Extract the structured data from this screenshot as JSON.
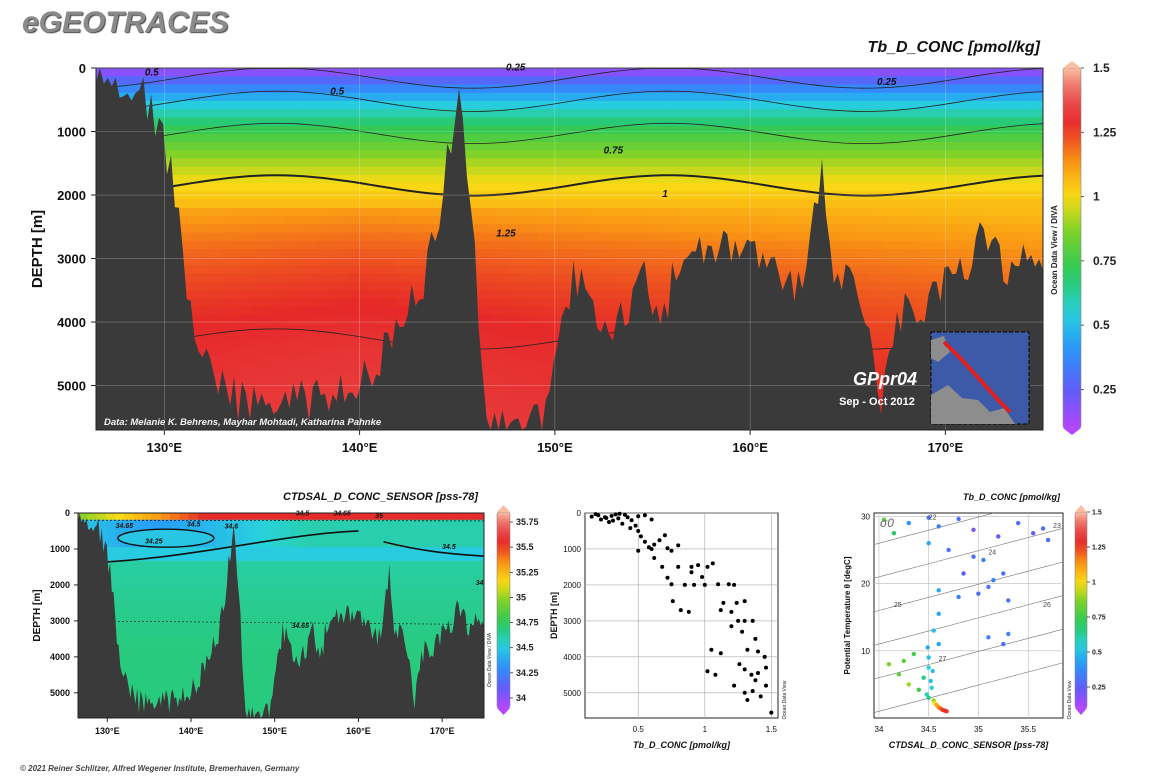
{
  "brand": "eGEOTRACES",
  "copyright": "© 2021 Reiner Schlitzer, Alfred Wegener Institute, Bremerhaven, Germany",
  "chart_data": [
    {
      "type": "heatmap",
      "title": "Tb_D_CONC [pmol/kg]",
      "ylabel": "DEPTH [m]",
      "xlim": [
        126.5,
        175
      ],
      "ylim": [
        5700,
        0
      ],
      "x_ticks": [
        "130°E",
        "140°E",
        "150°E",
        "160°E",
        "170°E"
      ],
      "x_tick_values": [
        130,
        140,
        150,
        160,
        170
      ],
      "y_ticks": [
        "0",
        "1000",
        "2000",
        "3000",
        "4000",
        "5000"
      ],
      "y_tick_values": [
        0,
        1000,
        2000,
        3000,
        4000,
        5000
      ],
      "colorbar": {
        "ticks": [
          "1.5",
          "1.25",
          "1",
          "0.75",
          "0.5",
          "0.25"
        ],
        "tick_values": [
          1.5,
          1.25,
          1,
          0.75,
          0.5,
          0.25
        ],
        "range": [
          0.1,
          1.5
        ]
      },
      "contour_labels": [
        "0.5",
        "0.25",
        "0.5",
        "0.25",
        "0.75",
        "1",
        "1.25"
      ],
      "credit": "Data: Melanie K. Behrens, Mayhar Mohtadi, Katharina Pahnke",
      "watermark": "Ocean Data View / DIVA",
      "cruise": "GPpr04",
      "cruise_dates": "Sep - Oct 2012"
    },
    {
      "type": "heatmap",
      "title": "CTDSAL_D_CONC_SENSOR [pss-78]",
      "ylabel": "DEPTH [m]",
      "xlim": [
        126.5,
        175
      ],
      "ylim": [
        5700,
        0
      ],
      "x_ticks": [
        "130°E",
        "140°E",
        "150°E",
        "160°E",
        "170°E"
      ],
      "x_tick_values": [
        130,
        140,
        150,
        160,
        170
      ],
      "y_ticks": [
        "0",
        "1000",
        "2000",
        "3000",
        "4000",
        "5000"
      ],
      "y_tick_values": [
        0,
        1000,
        2000,
        3000,
        4000,
        5000
      ],
      "colorbar": {
        "ticks": [
          "35.75",
          "35.5",
          "35.25",
          "35",
          "34.75",
          "34.5",
          "34.25",
          "34"
        ],
        "tick_values": [
          35.75,
          35.5,
          35.25,
          35,
          34.75,
          34.5,
          34.25,
          34
        ],
        "range": [
          33.9,
          35.85
        ]
      },
      "contour_labels": [
        "34.65",
        "34.5",
        "34.6",
        "34.5",
        "34.65",
        "35",
        "34.25",
        "34.5",
        "34",
        "34.65"
      ],
      "watermark": "Ocean Data View / DIVA"
    },
    {
      "type": "scatter",
      "xlabel": "Tb_D_CONC [pmol/kg]",
      "ylabel": "DEPTH [m]",
      "xlim": [
        0.1,
        1.55
      ],
      "ylim": [
        5700,
        0
      ],
      "x_ticks": [
        "0.5",
        "1",
        "1.5"
      ],
      "x_tick_values": [
        0.5,
        1,
        1.5
      ],
      "y_ticks": [
        "0",
        "1000",
        "2000",
        "3000",
        "4000",
        "5000"
      ],
      "y_tick_values": [
        0,
        1000,
        2000,
        3000,
        4000,
        5000
      ],
      "watermark": "Ocean Data View",
      "points": [
        [
          0.15,
          100
        ],
        [
          0.2,
          60
        ],
        [
          0.25,
          120
        ],
        [
          0.3,
          80
        ],
        [
          0.35,
          150
        ],
        [
          0.4,
          50
        ],
        [
          0.45,
          200
        ],
        [
          0.5,
          90
        ],
        [
          0.18,
          30
        ],
        [
          0.22,
          180
        ],
        [
          0.28,
          250
        ],
        [
          0.33,
          40
        ],
        [
          0.38,
          300
        ],
        [
          0.42,
          120
        ],
        [
          0.48,
          350
        ],
        [
          0.55,
          60
        ],
        [
          0.6,
          180
        ],
        [
          0.26,
          140
        ],
        [
          0.31,
          210
        ],
        [
          0.36,
          20
        ],
        [
          0.44,
          420
        ],
        [
          0.5,
          500
        ],
        [
          0.52,
          650
        ],
        [
          0.55,
          800
        ],
        [
          0.58,
          950
        ],
        [
          0.6,
          1000
        ],
        [
          0.62,
          880
        ],
        [
          0.66,
          760
        ],
        [
          0.7,
          620
        ],
        [
          0.72,
          980
        ],
        [
          0.75,
          1050
        ],
        [
          0.8,
          900
        ],
        [
          0.5,
          1050
        ],
        [
          0.62,
          1250
        ],
        [
          0.68,
          1500
        ],
        [
          0.72,
          1800
        ],
        [
          0.75,
          1980
        ],
        [
          0.8,
          1500
        ],
        [
          0.9,
          1500
        ],
        [
          0.95,
          1450
        ],
        [
          1.02,
          1500
        ],
        [
          1.06,
          1400
        ],
        [
          0.85,
          2000
        ],
        [
          0.92,
          2000
        ],
        [
          1.0,
          2000
        ],
        [
          0.76,
          2450
        ],
        [
          0.82,
          2700
        ],
        [
          0.88,
          2750
        ],
        [
          1.1,
          1980
        ],
        [
          1.18,
          1980
        ],
        [
          1.22,
          2000
        ],
        [
          1.14,
          2500
        ],
        [
          1.24,
          2500
        ],
        [
          1.3,
          2450
        ],
        [
          1.12,
          2700
        ],
        [
          1.2,
          2750
        ],
        [
          1.25,
          3000
        ],
        [
          1.3,
          3000
        ],
        [
          1.36,
          3000
        ],
        [
          1.2,
          3150
        ],
        [
          1.28,
          3300
        ],
        [
          1.38,
          3500
        ],
        [
          1.05,
          3800
        ],
        [
          1.12,
          3900
        ],
        [
          1.32,
          3800
        ],
        [
          1.4,
          3850
        ],
        [
          1.45,
          4000
        ],
        [
          1.02,
          4400
        ],
        [
          1.08,
          4500
        ],
        [
          1.26,
          4200
        ],
        [
          1.3,
          4350
        ],
        [
          1.35,
          4500
        ],
        [
          1.4,
          4450
        ],
        [
          1.46,
          4300
        ],
        [
          1.22,
          4800
        ],
        [
          1.3,
          5000
        ],
        [
          1.36,
          4950
        ],
        [
          1.42,
          5100
        ],
        [
          1.32,
          5200
        ],
        [
          1.5,
          5550
        ],
        [
          1.46,
          4800
        ],
        [
          1.38,
          4650
        ],
        [
          0.9,
          1650
        ],
        [
          0.98,
          1780
        ]
      ]
    },
    {
      "type": "scatter",
      "title": "Tb_D_CONC [pmol/kg]",
      "xlabel": "CTDSAL_D_CONC_SENSOR [pss-78]",
      "ylabel": "Potential Temperature θ [degC]",
      "xlim": [
        33.95,
        35.85
      ],
      "ylim": [
        0,
        30.5
      ],
      "x_ticks": [
        "34",
        "34.5",
        "35",
        "35.5"
      ],
      "x_tick_values": [
        34,
        34.5,
        35,
        35.5
      ],
      "y_ticks": [
        "30",
        "20",
        "10"
      ],
      "y_tick_values": [
        30,
        20,
        10
      ],
      "colorbar": {
        "ticks": [
          "1.5",
          "1.25",
          "1",
          "0.75",
          "0.5",
          "0.25"
        ],
        "tick_values": [
          1.5,
          1.25,
          1,
          0.75,
          0.5,
          0.25
        ],
        "range": [
          0.1,
          1.5
        ]
      },
      "sigma_label": "σ0",
      "isopycnal_labels": [
        "22",
        "23",
        "24",
        "25",
        "26",
        "27"
      ],
      "watermark": "Ocean Data View",
      "points": [
        [
          34.05,
          29.5,
          0.8
        ],
        [
          34.15,
          27.5,
          0.7
        ],
        [
          34.3,
          29,
          0.4
        ],
        [
          34.5,
          29.8,
          0.3
        ],
        [
          34.6,
          28.5,
          0.35
        ],
        [
          34.8,
          29.6,
          0.3
        ],
        [
          34.95,
          28,
          0.2
        ],
        [
          35.2,
          27,
          0.25
        ],
        [
          35.4,
          29,
          0.3
        ],
        [
          35.55,
          27.5,
          0.25
        ],
        [
          35.65,
          28.2,
          0.3
        ],
        [
          35.7,
          26.5,
          0.3
        ],
        [
          34.5,
          26,
          0.45
        ],
        [
          34.7,
          25,
          0.3
        ],
        [
          34.95,
          24,
          0.3
        ],
        [
          35.05,
          23.5,
          0.35
        ],
        [
          34.85,
          21.5,
          0.25
        ],
        [
          35.15,
          20.5,
          0.35
        ],
        [
          35.25,
          21.5,
          0.3
        ],
        [
          34.6,
          19,
          0.45
        ],
        [
          34.8,
          18,
          0.35
        ],
        [
          35.0,
          18.5,
          0.3
        ],
        [
          35.1,
          19.5,
          0.3
        ],
        [
          35.3,
          17.5,
          0.3
        ],
        [
          34.6,
          15.5,
          0.45
        ],
        [
          34.55,
          13,
          0.5
        ],
        [
          35.1,
          12,
          0.35
        ],
        [
          35.25,
          11,
          0.3
        ],
        [
          35.3,
          12.5,
          0.35
        ],
        [
          34.25,
          8.5,
          0.8
        ],
        [
          34.35,
          9.5,
          0.75
        ],
        [
          34.1,
          8,
          0.85
        ],
        [
          34.2,
          6.5,
          0.8
        ],
        [
          34.3,
          5,
          0.9
        ],
        [
          34.4,
          4.2,
          0.75
        ],
        [
          34.45,
          6,
          0.65
        ],
        [
          34.5,
          7.5,
          0.55
        ],
        [
          34.48,
          3.5,
          0.6
        ],
        [
          34.5,
          3,
          0.65
        ],
        [
          34.55,
          2.6,
          0.9
        ],
        [
          34.56,
          2.2,
          1.0
        ],
        [
          34.58,
          1.9,
          1.1
        ],
        [
          34.6,
          1.6,
          1.15
        ],
        [
          34.62,
          1.4,
          1.2
        ],
        [
          34.64,
          1.2,
          1.25
        ],
        [
          34.66,
          1.1,
          1.3
        ],
        [
          34.68,
          1.0,
          1.3
        ],
        [
          34.53,
          4.5,
          0.55
        ],
        [
          34.52,
          5.5,
          0.5
        ],
        [
          34.54,
          7,
          0.5
        ],
        [
          34.5,
          9,
          0.5
        ],
        [
          34.49,
          10.5,
          0.45
        ],
        [
          34.6,
          11,
          0.45
        ]
      ]
    }
  ]
}
